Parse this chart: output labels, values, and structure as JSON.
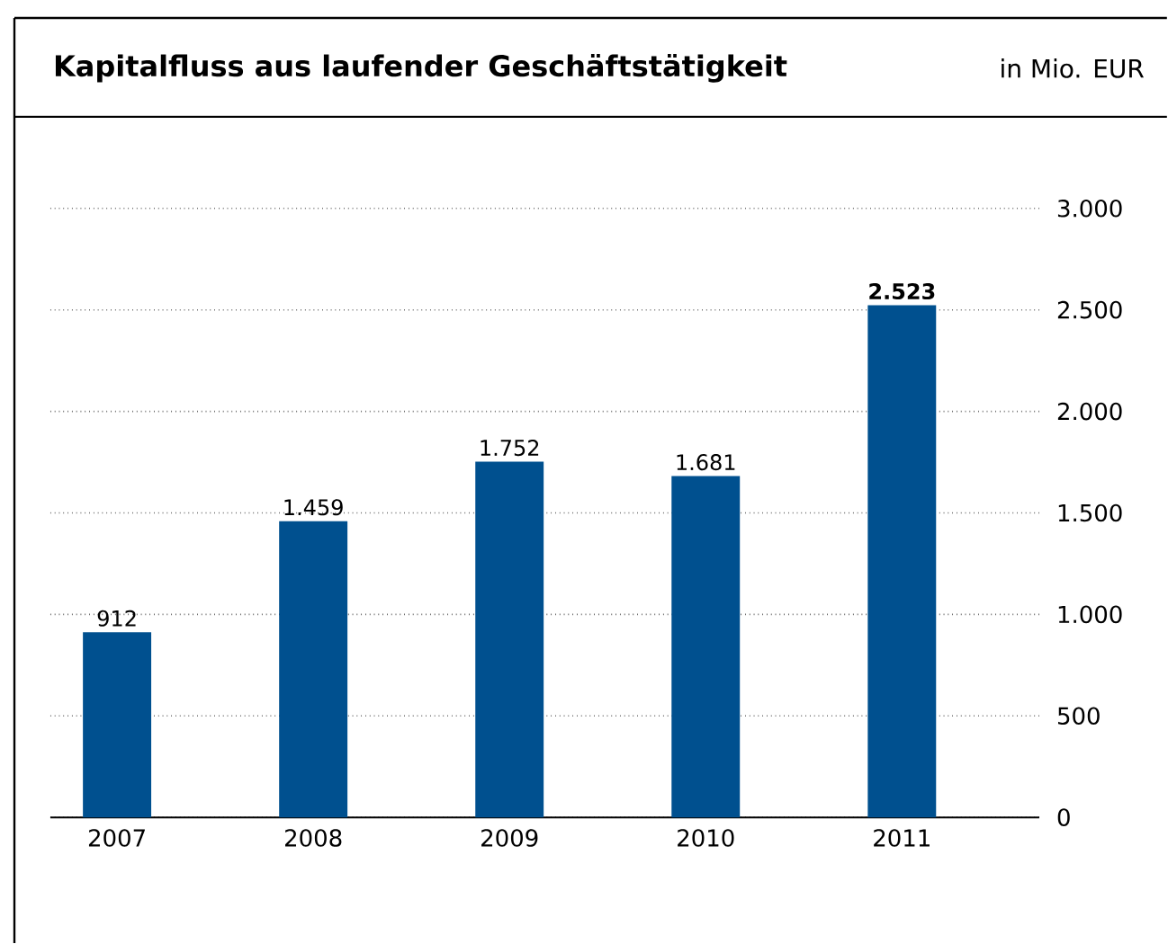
{
  "chart_data": {
    "type": "bar",
    "title": "Kapitalfluss aus laufender Geschäftstätigkeit",
    "subtitle": "in Mio. EUR",
    "categories": [
      "2007",
      "2008",
      "2009",
      "2010",
      "2011"
    ],
    "values": [
      912,
      1459,
      1752,
      1681,
      2523
    ],
    "value_labels": [
      "912",
      "1.459",
      "1.752",
      "1.681",
      "**2.523**"
    ],
    "color": "#00508f",
    "ylim": [
      0,
      3000
    ],
    "yticks": [
      {
        "value": 0,
        "label": "0"
      },
      {
        "value": 500,
        "label": "500"
      },
      {
        "value": 1000,
        "label": "1.000"
      },
      {
        "value": 1500,
        "label": "1.500"
      },
      {
        "value": 2000,
        "label": "2.000"
      },
      {
        "value": 2500,
        "label": "2.500"
      },
      {
        "value": 3000,
        "label": "3.000"
      }
    ],
    "grid": "y"
  }
}
